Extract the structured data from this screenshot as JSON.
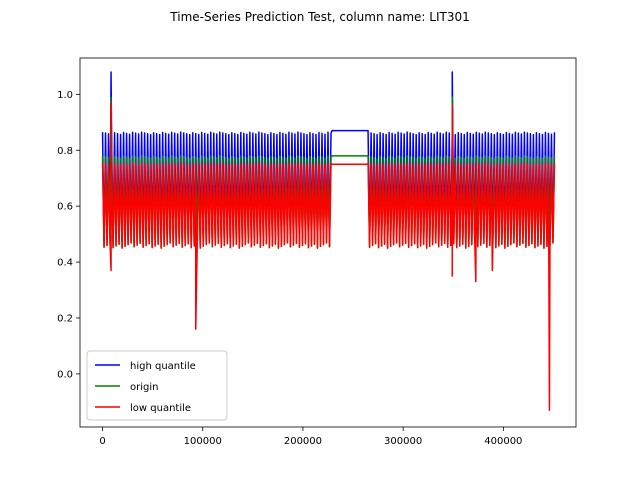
{
  "chart_data": {
    "type": "line",
    "title": "Time-Series Prediction Test, column name: LIT301",
    "xlabel": "",
    "ylabel": "",
    "xlim": [
      -22500,
      472500
    ],
    "ylim": [
      -0.19,
      1.13
    ],
    "xticks": [
      0,
      100000,
      200000,
      300000,
      400000
    ],
    "xtick_labels": [
      "0",
      "100000",
      "200000",
      "300000",
      "400000"
    ],
    "yticks": [
      0.0,
      0.2,
      0.4,
      0.6,
      0.8,
      1.0
    ],
    "ytick_labels": [
      "0.0",
      "0.2",
      "0.4",
      "0.6",
      "0.8",
      "1.0"
    ],
    "grid": false,
    "legend_position": "lower-left",
    "series": [
      {
        "name": "high quantile",
        "color": "#0000ff",
        "cycle_range": [
          0.47,
          0.865
        ],
        "flat_level": 0.87,
        "spikes": [
          [
            8500,
            1.08
          ],
          [
            349000,
            1.08
          ]
        ]
      },
      {
        "name": "origin",
        "color": "#008000",
        "cycle_range": [
          0.45,
          0.78
        ],
        "flat_level": 0.78,
        "spikes": [
          [
            8500,
            0.99
          ],
          [
            349000,
            0.99
          ],
          [
            372000,
            0.55
          ]
        ]
      },
      {
        "name": "low quantile",
        "color": "#ff0000",
        "cycle_range": [
          0.45,
          0.755
        ],
        "flat_level": 0.75,
        "spikes": [
          [
            8500,
            0.37
          ],
          [
            8600,
            0.97
          ],
          [
            93000,
            0.16
          ],
          [
            349000,
            0.35
          ],
          [
            349100,
            0.96
          ],
          [
            372500,
            0.33
          ],
          [
            389000,
            0.37
          ],
          [
            446000,
            -0.13
          ]
        ]
      }
    ],
    "segments": {
      "active": [
        [
          0,
          229000
        ],
        [
          265000,
          452000
        ]
      ],
      "flat": [
        229000,
        265000
      ],
      "cycle_period": 3000
    }
  }
}
